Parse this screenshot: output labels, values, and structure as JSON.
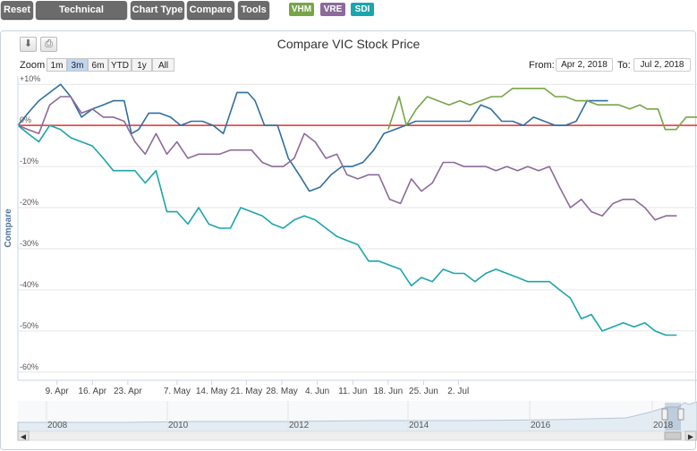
{
  "toolbar": {
    "reset": "Reset",
    "technical_indicators": "Technical Indicators",
    "chart_type": "Chart Type",
    "compare": "Compare",
    "tools": "Tools"
  },
  "compare_tags": [
    {
      "label": "VHM",
      "color": "#77a547"
    },
    {
      "label": "VRE",
      "color": "#8c6a9a"
    },
    {
      "label": "SDI",
      "color": "#1ba5ac"
    }
  ],
  "title": "Compare VIC Stock Price",
  "zoom": {
    "label": "Zoom",
    "buttons": [
      "1m",
      "3m",
      "6m",
      "YTD",
      "1y",
      "All"
    ],
    "active": "3m"
  },
  "range": {
    "from_label": "From:",
    "from_value": "Apr 2, 2018",
    "to_label": "To:",
    "to_value": "Jul 2, 2018"
  },
  "icons": {
    "download": "download-icon",
    "print": "print-icon"
  },
  "chart_data": {
    "type": "line",
    "title": "Compare VIC Stock Price",
    "ylabel": "Compare",
    "ylim": [
      -62,
      12
    ],
    "yticks": [
      10,
      0,
      -10,
      -20,
      -30,
      -40,
      -50,
      -60
    ],
    "ytick_labels": [
      "+10%",
      "0%",
      "-10%",
      "-20%",
      "-30%",
      "-40%",
      "-50%",
      "-60%"
    ],
    "xticks": [
      {
        "x": 5.4,
        "label": "9. Apr"
      },
      {
        "x": 10.3,
        "label": "16. Apr"
      },
      {
        "x": 15.2,
        "label": "23. Apr"
      },
      {
        "x": 22.0,
        "label": "7. May"
      },
      {
        "x": 26.8,
        "label": "14. May"
      },
      {
        "x": 31.6,
        "label": "21. May"
      },
      {
        "x": 36.5,
        "label": "28. May"
      },
      {
        "x": 41.4,
        "label": "4. Jun"
      },
      {
        "x": 46.3,
        "label": "11. Jun"
      },
      {
        "x": 51.2,
        "label": "18. Jun"
      },
      {
        "x": 56.1,
        "label": "25. Jun"
      },
      {
        "x": 60.9,
        "label": "2. Jul"
      }
    ],
    "baseline": 0,
    "baseline_color": "#e0302b",
    "series": [
      {
        "color": "#2f6f9f",
        "points": [
          [
            0,
            0
          ],
          [
            1.4,
            3
          ],
          [
            2.9,
            6
          ],
          [
            4.4,
            8
          ],
          [
            5.9,
            10
          ],
          [
            7.3,
            7
          ],
          [
            8.8,
            2
          ],
          [
            10.3,
            4
          ],
          [
            11.8,
            5
          ],
          [
            13.2,
            6
          ],
          [
            14.7,
            6
          ],
          [
            15.7,
            -2
          ],
          [
            16.7,
            -1
          ],
          [
            18.1,
            3
          ],
          [
            19.6,
            3
          ],
          [
            21.1,
            2
          ],
          [
            22.5,
            0
          ],
          [
            24,
            1
          ],
          [
            25.5,
            1
          ],
          [
            27,
            0
          ],
          [
            28.4,
            -2
          ],
          [
            30.3,
            8
          ],
          [
            31.8,
            8
          ],
          [
            32.8,
            6
          ],
          [
            34.1,
            0
          ],
          [
            35.9,
            0
          ],
          [
            37.4,
            -8
          ],
          [
            38.9,
            -12
          ],
          [
            40.3,
            -16
          ],
          [
            41.8,
            -15
          ],
          [
            43.3,
            -12
          ],
          [
            44.8,
            -10
          ],
          [
            46.2,
            -10
          ],
          [
            47.7,
            -9
          ],
          [
            49.2,
            -6
          ],
          [
            50.6,
            -2
          ],
          [
            52.1,
            -1
          ],
          [
            53.6,
            0
          ],
          [
            55,
            1
          ],
          [
            56.5,
            1
          ],
          [
            58,
            1
          ],
          [
            59.5,
            1
          ],
          [
            61,
            1
          ],
          [
            62.5,
            1
          ],
          [
            64,
            5
          ],
          [
            65.4,
            4
          ],
          [
            66.9,
            1
          ],
          [
            68.4,
            1
          ],
          [
            69.9,
            0
          ],
          [
            71.3,
            2
          ],
          [
            72.8,
            1
          ],
          [
            74.3,
            0
          ],
          [
            75.7,
            0
          ],
          [
            77.2,
            1
          ],
          [
            78.7,
            6
          ],
          [
            80.2,
            6
          ],
          [
            81.6,
            6
          ]
        ]
      },
      {
        "color": "#77a547",
        "points": [
          [
            51.2,
            -1
          ],
          [
            52.7,
            7
          ],
          [
            53.7,
            0
          ],
          [
            55.1,
            4
          ],
          [
            56.6,
            7
          ],
          [
            58.1,
            6
          ],
          [
            59.6,
            5
          ],
          [
            61.1,
            6
          ],
          [
            62.5,
            5
          ],
          [
            64,
            6
          ],
          [
            65.5,
            7
          ],
          [
            66.9,
            7
          ],
          [
            68.4,
            9
          ],
          [
            69.9,
            9
          ],
          [
            71.3,
            9
          ],
          [
            72.8,
            9
          ],
          [
            74.3,
            7
          ],
          [
            75.7,
            7
          ],
          [
            77.2,
            6
          ],
          [
            78.7,
            6
          ],
          [
            80.2,
            5
          ],
          [
            81.6,
            5
          ],
          [
            83.1,
            5
          ],
          [
            84.6,
            4
          ],
          [
            86,
            5
          ],
          [
            87,
            4
          ],
          [
            88.5,
            4
          ],
          [
            89.5,
            -1
          ],
          [
            91,
            -1
          ],
          [
            92.4,
            2
          ],
          [
            93.9,
            2
          ]
        ]
      },
      {
        "color": "#8c6a9a",
        "points": [
          [
            0,
            0
          ],
          [
            1.4,
            -1
          ],
          [
            2.9,
            -2
          ],
          [
            4.4,
            5
          ],
          [
            5.9,
            7
          ],
          [
            7.3,
            7
          ],
          [
            8.8,
            3
          ],
          [
            10.3,
            4
          ],
          [
            11.8,
            2
          ],
          [
            13.2,
            2
          ],
          [
            14.7,
            1
          ],
          [
            16.2,
            -4
          ],
          [
            17.6,
            -7
          ],
          [
            19.1,
            -2
          ],
          [
            20.6,
            -7
          ],
          [
            22,
            -4
          ],
          [
            23.5,
            -8
          ],
          [
            25,
            -7
          ],
          [
            26.4,
            -7
          ],
          [
            27.9,
            -7
          ],
          [
            29.4,
            -6
          ],
          [
            30.8,
            -6
          ],
          [
            32.3,
            -6
          ],
          [
            33.8,
            -9
          ],
          [
            35.2,
            -10
          ],
          [
            36.7,
            -10
          ],
          [
            38.2,
            -8
          ],
          [
            39.6,
            -2
          ],
          [
            41.1,
            -4
          ],
          [
            42.6,
            -8
          ],
          [
            44.1,
            -7
          ],
          [
            45.5,
            -12
          ],
          [
            47,
            -13
          ],
          [
            48.5,
            -12
          ],
          [
            49.9,
            -12
          ],
          [
            51.4,
            -18
          ],
          [
            52.9,
            -19
          ],
          [
            54.4,
            -13
          ],
          [
            55.8,
            -16
          ],
          [
            57.3,
            -14
          ],
          [
            58.8,
            -9
          ],
          [
            60.3,
            -9
          ],
          [
            61.7,
            -10
          ],
          [
            63.2,
            -10
          ],
          [
            64.7,
            -10
          ],
          [
            66.1,
            -11
          ],
          [
            67.6,
            -10
          ],
          [
            69.1,
            -11
          ],
          [
            70.5,
            -10
          ],
          [
            72,
            -11
          ],
          [
            73.5,
            -10
          ],
          [
            74.9,
            -15
          ],
          [
            76.4,
            -20
          ],
          [
            77.9,
            -18
          ],
          [
            79.3,
            -21
          ],
          [
            80.8,
            -22
          ],
          [
            82.3,
            -19
          ],
          [
            83.7,
            -18
          ],
          [
            85.2,
            -18
          ],
          [
            86.7,
            -20
          ],
          [
            88.1,
            -23
          ],
          [
            89.6,
            -22
          ],
          [
            91.1,
            -22
          ]
        ]
      },
      {
        "color": "#1ba5ac",
        "points": [
          [
            0,
            0
          ],
          [
            1.4,
            -2
          ],
          [
            2.9,
            -4
          ],
          [
            4.4,
            0
          ],
          [
            5.9,
            -1
          ],
          [
            7.3,
            -3
          ],
          [
            8.8,
            -4
          ],
          [
            10.3,
            -5
          ],
          [
            11.8,
            -8
          ],
          [
            13.2,
            -11
          ],
          [
            14.7,
            -11
          ],
          [
            16.2,
            -11
          ],
          [
            17.6,
            -14
          ],
          [
            19.1,
            -11
          ],
          [
            20.6,
            -21
          ],
          [
            22,
            -21
          ],
          [
            23.5,
            -24
          ],
          [
            25,
            -20
          ],
          [
            26.4,
            -24
          ],
          [
            27.9,
            -25
          ],
          [
            29.4,
            -25
          ],
          [
            30.8,
            -20
          ],
          [
            32.3,
            -21
          ],
          [
            33.8,
            -22
          ],
          [
            35.2,
            -24
          ],
          [
            36.7,
            -25
          ],
          [
            38.2,
            -23
          ],
          [
            39.6,
            -22
          ],
          [
            41.1,
            -23
          ],
          [
            42.6,
            -25
          ],
          [
            44.1,
            -27
          ],
          [
            45.5,
            -28
          ],
          [
            47,
            -29
          ],
          [
            48.5,
            -33
          ],
          [
            49.9,
            -33
          ],
          [
            51.4,
            -34
          ],
          [
            52.9,
            -35
          ],
          [
            54.4,
            -39
          ],
          [
            55.8,
            -37
          ],
          [
            57.3,
            -38
          ],
          [
            58.8,
            -35
          ],
          [
            60.3,
            -36
          ],
          [
            61.7,
            -36
          ],
          [
            63.2,
            -38
          ],
          [
            64.7,
            -36
          ],
          [
            66.1,
            -35
          ],
          [
            67.6,
            -36
          ],
          [
            69.1,
            -37
          ],
          [
            70.5,
            -38
          ],
          [
            72,
            -38
          ],
          [
            73.5,
            -38
          ],
          [
            74.9,
            -40
          ],
          [
            76.4,
            -42
          ],
          [
            77.9,
            -47
          ],
          [
            79.3,
            -46
          ],
          [
            80.8,
            -50
          ],
          [
            82.3,
            -49
          ],
          [
            83.7,
            -48
          ],
          [
            85.2,
            -49
          ],
          [
            86.7,
            -48
          ],
          [
            88.1,
            -50
          ],
          [
            89.6,
            -51
          ],
          [
            91.1,
            -51
          ]
        ]
      }
    ]
  },
  "navigator": {
    "years": [
      "2008",
      "2010",
      "2012",
      "2014",
      "2016",
      "2018"
    ]
  }
}
